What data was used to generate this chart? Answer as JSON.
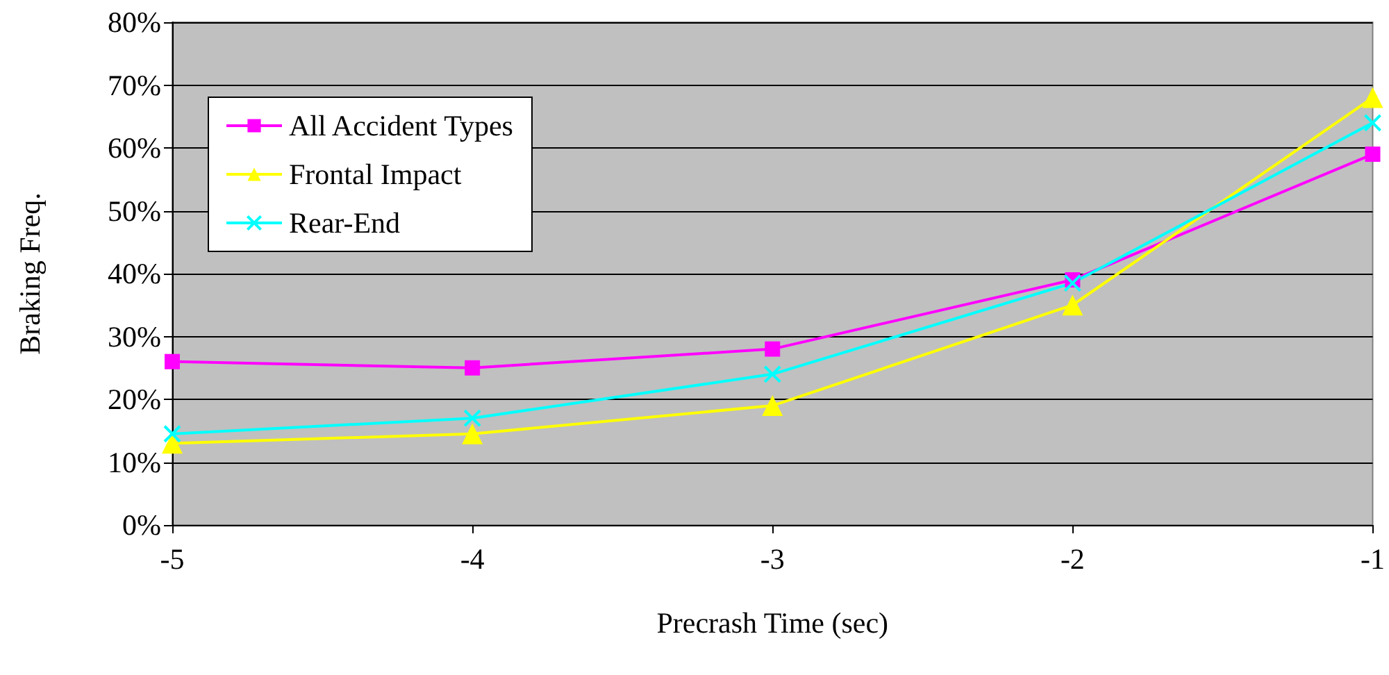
{
  "chart_data": {
    "type": "line",
    "xlabel": "Precrash Time (sec)",
    "ylabel": "Braking Freq.",
    "x": [
      -5,
      -4,
      -3,
      -2,
      -1
    ],
    "series": [
      {
        "name": "All Accident Types",
        "color": "#ff00ff",
        "marker": "square",
        "values": [
          26,
          25,
          28,
          39,
          59
        ]
      },
      {
        "name": "Frontal Impact",
        "color": "#ffff00",
        "marker": "triangle",
        "values": [
          13,
          14.5,
          19,
          35,
          68
        ]
      },
      {
        "name": "Rear-End",
        "color": "#00ffff",
        "marker": "cross",
        "values": [
          14.5,
          17,
          24,
          38.5,
          64
        ]
      }
    ],
    "xlim": [
      -5,
      -1
    ],
    "xticks": [
      -5,
      -4,
      -3,
      -2,
      -1
    ],
    "ylim": [
      0,
      80
    ],
    "yticks": [
      {
        "value": 0,
        "label": "0%"
      },
      {
        "value": 10,
        "label": "10%"
      },
      {
        "value": 20,
        "label": "20%"
      },
      {
        "value": 30,
        "label": "30%"
      },
      {
        "value": 40,
        "label": "40%"
      },
      {
        "value": 50,
        "label": "50%"
      },
      {
        "value": 60,
        "label": "60%"
      },
      {
        "value": 70,
        "label": "70%"
      },
      {
        "value": 80,
        "label": "80%"
      }
    ],
    "grid": "y",
    "legend": "top left"
  }
}
